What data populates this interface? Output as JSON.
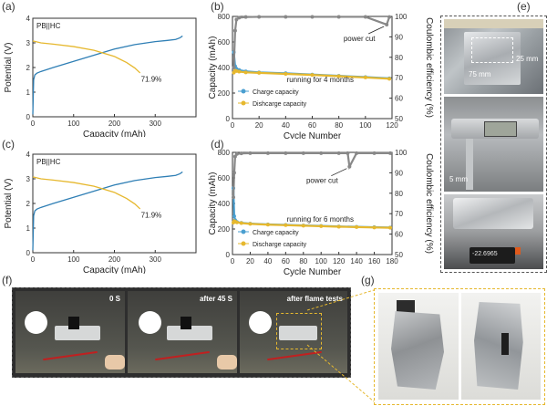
{
  "figure": {
    "panel_letters": [
      "(a)",
      "(b)",
      "(c)",
      "(d)",
      "(e)",
      "(f)",
      "(g)"
    ]
  },
  "panel_e": {
    "label_25mm": "25 mm",
    "label_75mm": "75 mm",
    "label_5mm": "5 mm",
    "scale_reading": "-22.6965"
  },
  "panel_f": {
    "frames": [
      "0 S",
      "after 45 S",
      "after flame tests"
    ]
  },
  "chart_data": [
    {
      "panel": "(a)",
      "type": "line",
      "legend_text": "PB||HC",
      "xlabel": "Capacity (mAh)",
      "ylabel": "Potential (V)",
      "xlim": [
        0,
        400
      ],
      "ylim": [
        0,
        4
      ],
      "x_ticks": [
        "0",
        "100",
        "200",
        "300"
      ],
      "y_ticks": [
        "0",
        "1",
        "2",
        "3",
        "4"
      ],
      "annotation": "71.9%",
      "series": [
        {
          "color": "#2f7fb5",
          "x": [
            0,
            2,
            5,
            10,
            20,
            50,
            100,
            150,
            200,
            250,
            300,
            330,
            350,
            360,
            367
          ],
          "y": [
            0.1,
            1.5,
            1.7,
            1.77,
            1.84,
            2.0,
            2.25,
            2.5,
            2.75,
            2.93,
            3.05,
            3.1,
            3.14,
            3.2,
            3.28
          ]
        },
        {
          "color": "#e6b82e",
          "x": [
            0,
            20,
            50,
            100,
            150,
            200,
            230,
            250,
            263
          ],
          "y": [
            3.08,
            3.0,
            2.95,
            2.85,
            2.7,
            2.45,
            2.2,
            1.98,
            1.78
          ]
        }
      ]
    },
    {
      "panel": "(b)",
      "type": "scatter",
      "xlabel": "Cycle Number",
      "ylabel": "Capacity (mAh)",
      "ylabel_right": "Coulombic efficiency (%)",
      "xlim": [
        0,
        120
      ],
      "ylim": [
        0,
        800
      ],
      "ylim_right": [
        50,
        100
      ],
      "x_ticks": [
        "0",
        "20",
        "40",
        "60",
        "80",
        "100",
        "120"
      ],
      "y_ticks": [
        "0",
        "200",
        "400",
        "600",
        "800"
      ],
      "y_ticks_right": [
        "50",
        "60",
        "70",
        "80",
        "90",
        "100"
      ],
      "legend": [
        "Charge capacity",
        "Dishcarge capacity"
      ],
      "annotations": [
        "power cut",
        "running for 4 months"
      ],
      "series": [
        {
          "color": "#4a9fd0",
          "x": [
            1,
            2,
            3,
            5,
            10,
            20,
            40,
            60,
            80,
            100,
            118
          ],
          "y": [
            520,
            410,
            390,
            380,
            370,
            362,
            355,
            345,
            335,
            325,
            315
          ]
        },
        {
          "color": "#e6b82e",
          "x": [
            1,
            2,
            3,
            5,
            10,
            20,
            40,
            60,
            80,
            100,
            118
          ],
          "y": [
            360,
            375,
            372,
            368,
            362,
            358,
            350,
            342,
            332,
            322,
            312
          ]
        },
        {
          "color": "#888888",
          "axis": "right",
          "x": [
            1,
            2,
            3,
            5,
            10,
            20,
            40,
            60,
            80,
            100,
            116,
            118
          ],
          "y": [
            75,
            93,
            98.5,
            99.4,
            99.7,
            99.8,
            99.8,
            99.8,
            99.8,
            99.8,
            96,
            99.7
          ]
        }
      ]
    },
    {
      "panel": "(c)",
      "type": "line",
      "legend_text": "PB||HC",
      "xlabel": "Capacity (mAh)",
      "ylabel": "Potential (V)",
      "xlim": [
        0,
        400
      ],
      "ylim": [
        0,
        4
      ],
      "x_ticks": [
        "0",
        "100",
        "200",
        "300"
      ],
      "y_ticks": [
        "0",
        "1",
        "2",
        "3",
        "4"
      ],
      "annotation": "71.9%",
      "series": [
        {
          "color": "#2f7fb5",
          "x": [
            0,
            2,
            5,
            10,
            20,
            50,
            100,
            150,
            200,
            250,
            300,
            330,
            350,
            360,
            367
          ],
          "y": [
            0.1,
            1.5,
            1.7,
            1.77,
            1.84,
            2.0,
            2.25,
            2.5,
            2.75,
            2.93,
            3.05,
            3.1,
            3.14,
            3.2,
            3.28
          ]
        },
        {
          "color": "#e6b82e",
          "x": [
            0,
            20,
            50,
            100,
            150,
            200,
            230,
            250,
            263
          ],
          "y": [
            3.08,
            3.0,
            2.95,
            2.85,
            2.7,
            2.45,
            2.2,
            1.98,
            1.78
          ]
        }
      ]
    },
    {
      "panel": "(d)",
      "type": "scatter",
      "xlabel": "Cycle Number",
      "ylabel": "Capacity (mAh)",
      "ylabel_right": "Coulombic efficiency (%)",
      "xlim": [
        0,
        180
      ],
      "ylim": [
        0,
        800
      ],
      "ylim_right": [
        50,
        100
      ],
      "x_ticks": [
        "0",
        "20",
        "40",
        "60",
        "80",
        "100",
        "120",
        "140",
        "160",
        "180"
      ],
      "y_ticks": [
        "0",
        "200",
        "400",
        "600",
        "800"
      ],
      "y_ticks_right": [
        "50",
        "60",
        "70",
        "80",
        "90",
        "100"
      ],
      "legend": [
        "Charge capacity",
        "Discharge capacity"
      ],
      "annotations": [
        "power cut",
        "running for 6 months"
      ],
      "series": [
        {
          "color": "#4a9fd0",
          "x": [
            1,
            2,
            3,
            5,
            10,
            20,
            40,
            60,
            80,
            100,
            120,
            140,
            160,
            178
          ],
          "y": [
            520,
            300,
            270,
            255,
            248,
            242,
            236,
            232,
            228,
            224,
            220,
            217,
            214,
            212
          ]
        },
        {
          "color": "#e6b82e",
          "x": [
            1,
            2,
            3,
            5,
            10,
            20,
            40,
            60,
            80,
            100,
            120,
            140,
            160,
            178
          ],
          "y": [
            250,
            262,
            258,
            252,
            246,
            240,
            234,
            230,
            226,
            222,
            218,
            215,
            212,
            210
          ]
        },
        {
          "color": "#888888",
          "axis": "right",
          "x": [
            1,
            2,
            3,
            5,
            10,
            20,
            40,
            60,
            80,
            100,
            120,
            130,
            132,
            140,
            160,
            178
          ],
          "y": [
            78,
            90,
            98,
            99.2,
            99.5,
            99.6,
            99.6,
            99.6,
            99.6,
            99.6,
            99.6,
            99.6,
            93,
            99.6,
            99.6,
            99.6
          ]
        }
      ]
    }
  ]
}
